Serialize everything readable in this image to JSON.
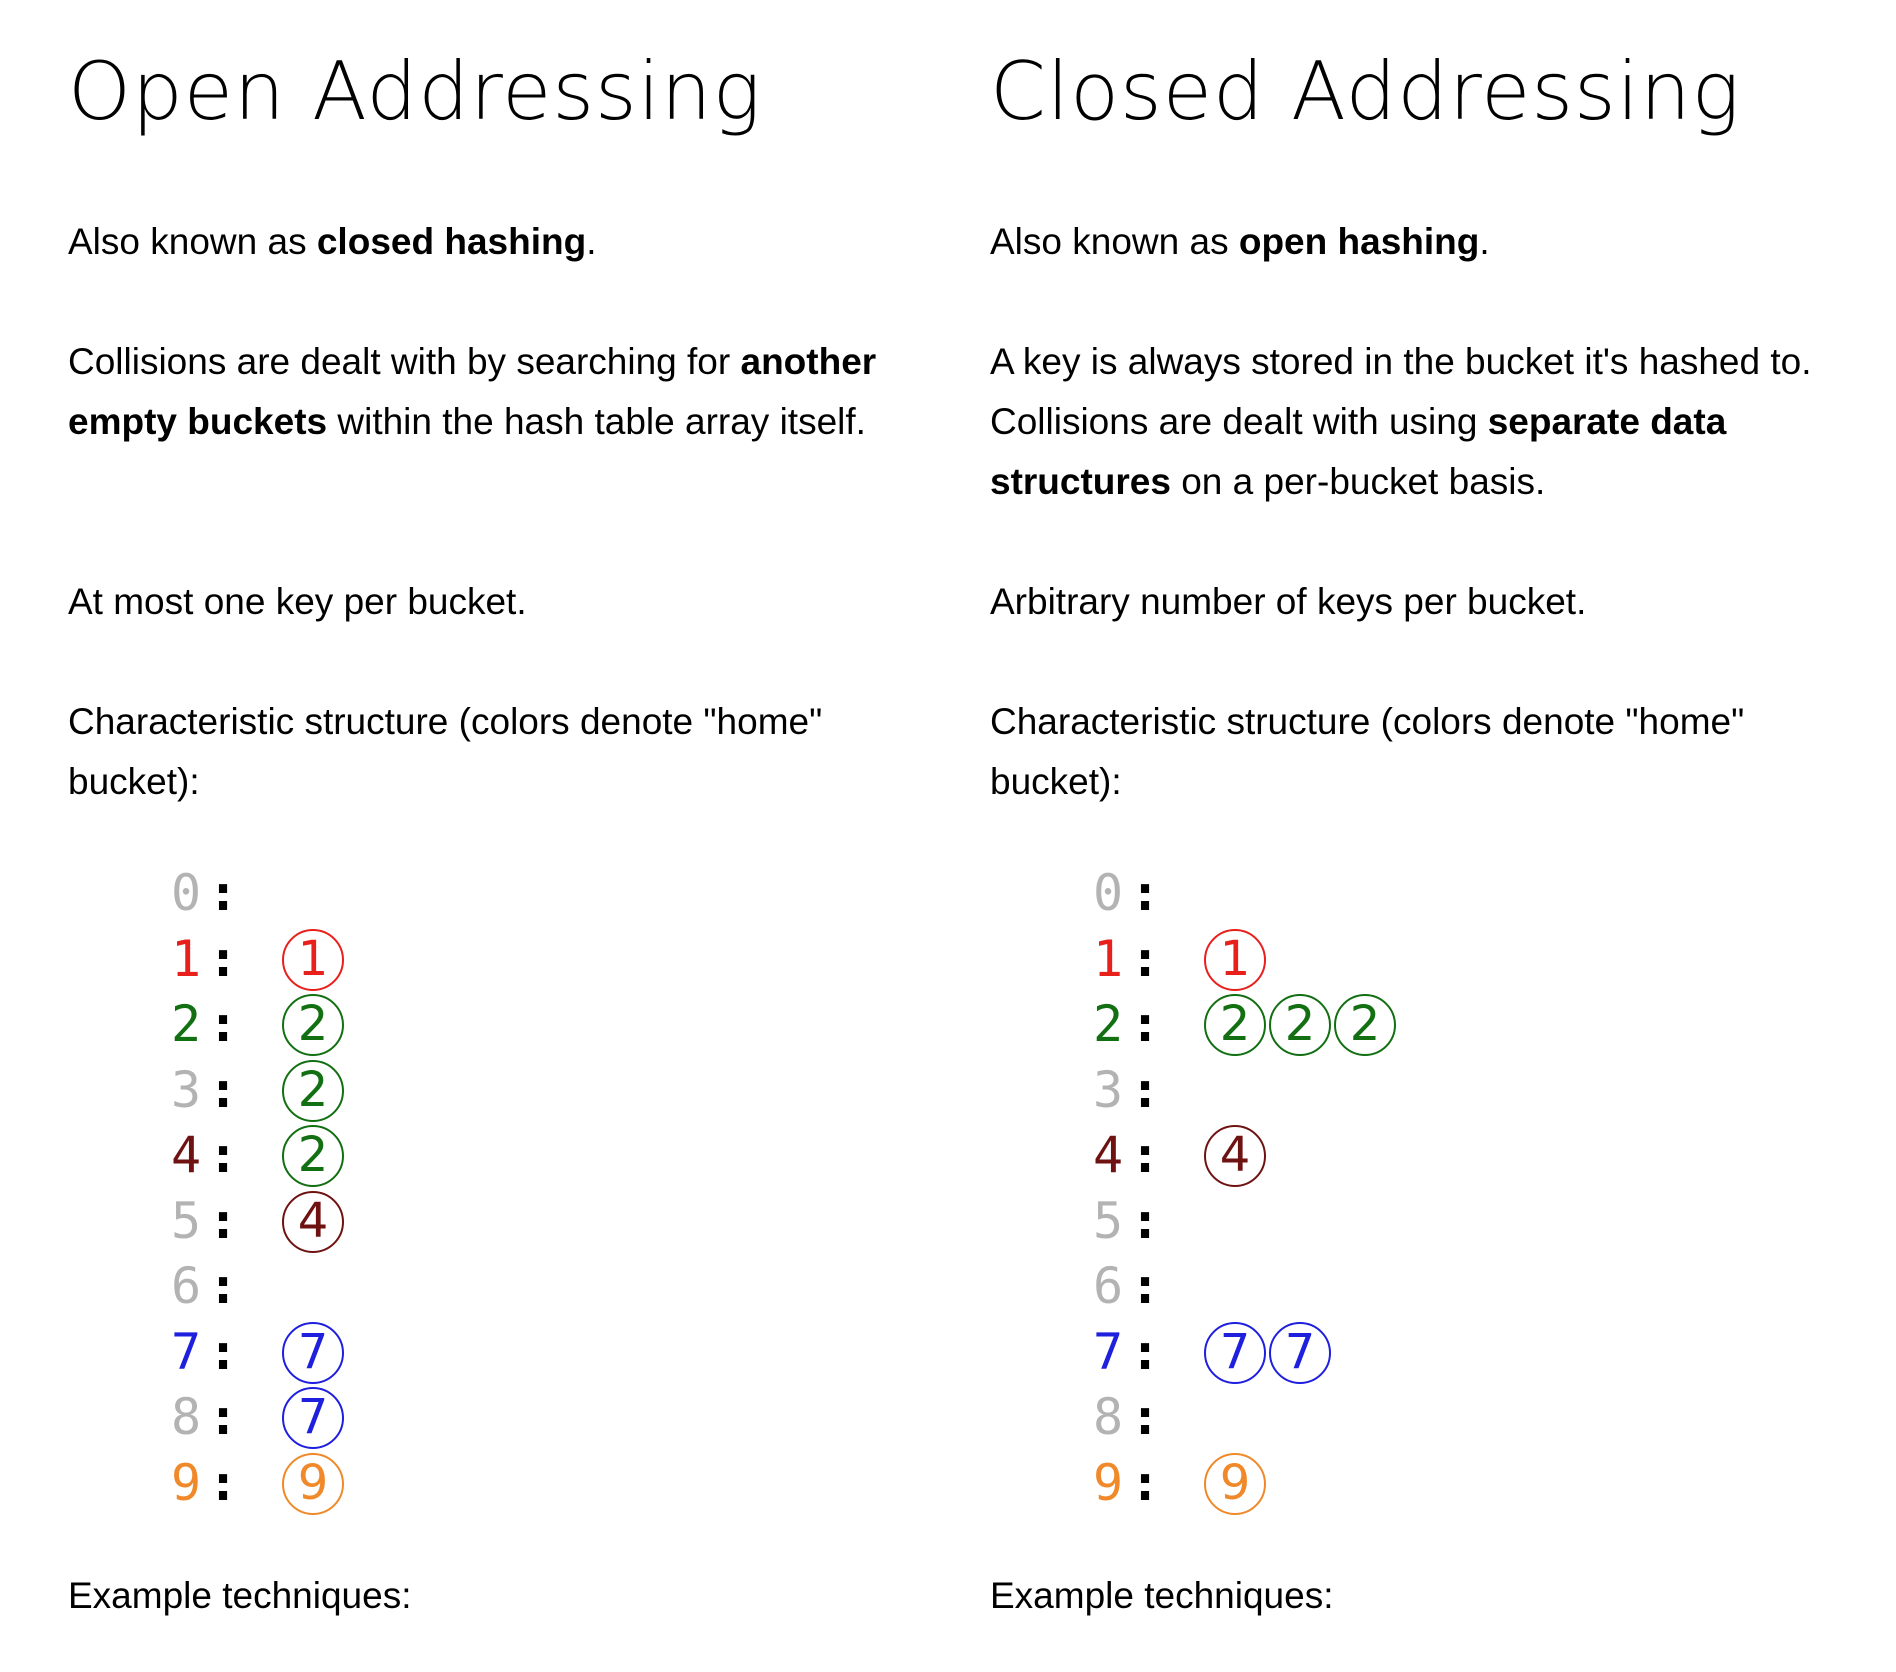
{
  "colors": {
    "gray": "#b3b3b3",
    "red": "#e8201c",
    "green": "#126f12",
    "darkred": "#6e1312",
    "blue": "#1f1fde",
    "orange": "#f0892a"
  },
  "left": {
    "title": "Open Addressing",
    "aka": {
      "prefix": "Also known as ",
      "bold": "closed hashing",
      "suffix": "."
    },
    "collisions": {
      "line1_prefix": "Collisions are dealt with by searching for ",
      "line1_bold": "another",
      "line2_bold": "empty buckets",
      "line2_suffix": " within the hash table array itself."
    },
    "capacity": "At most one key per bucket.",
    "structure": {
      "line1": "Characteristic structure (colors denote \"home\"",
      "line2": "bucket):"
    },
    "buckets": [
      {
        "index": "0",
        "color": "gray",
        "keys": []
      },
      {
        "index": "1",
        "color": "red",
        "keys": [
          {
            "value": "1",
            "color": "red"
          }
        ]
      },
      {
        "index": "2",
        "color": "green",
        "keys": [
          {
            "value": "2",
            "color": "green"
          }
        ]
      },
      {
        "index": "3",
        "color": "gray",
        "keys": [
          {
            "value": "2",
            "color": "green"
          }
        ]
      },
      {
        "index": "4",
        "color": "darkred",
        "keys": [
          {
            "value": "2",
            "color": "green"
          }
        ]
      },
      {
        "index": "5",
        "color": "gray",
        "keys": [
          {
            "value": "4",
            "color": "darkred"
          }
        ]
      },
      {
        "index": "6",
        "color": "gray",
        "keys": []
      },
      {
        "index": "7",
        "color": "blue",
        "keys": [
          {
            "value": "7",
            "color": "blue"
          }
        ]
      },
      {
        "index": "8",
        "color": "gray",
        "keys": [
          {
            "value": "7",
            "color": "blue"
          }
        ]
      },
      {
        "index": "9",
        "color": "orange",
        "keys": [
          {
            "value": "9",
            "color": "orange"
          }
        ]
      }
    ],
    "techniques": "Example techniques:"
  },
  "right": {
    "title": "Closed Addressing",
    "aka": {
      "prefix": "Also known as ",
      "bold": "open hashing",
      "suffix": "."
    },
    "stored": "A key is always stored in the bucket it's hashed to.",
    "collisions": {
      "line1_prefix": "Collisions are dealt with using ",
      "line1_bold": "separate data",
      "line2_bold": "structures",
      "line2_suffix": " on a per-bucket basis."
    },
    "capacity": "Arbitrary number of keys per bucket.",
    "structure": {
      "line1": "Characteristic structure (colors denote \"home\"",
      "line2": "bucket):"
    },
    "buckets": [
      {
        "index": "0",
        "color": "gray",
        "keys": []
      },
      {
        "index": "1",
        "color": "red",
        "keys": [
          {
            "value": "1",
            "color": "red"
          }
        ]
      },
      {
        "index": "2",
        "color": "green",
        "keys": [
          {
            "value": "2",
            "color": "green"
          },
          {
            "value": "2",
            "color": "green"
          },
          {
            "value": "2",
            "color": "green"
          }
        ]
      },
      {
        "index": "3",
        "color": "gray",
        "keys": []
      },
      {
        "index": "4",
        "color": "darkred",
        "keys": [
          {
            "value": "4",
            "color": "darkred"
          }
        ]
      },
      {
        "index": "5",
        "color": "gray",
        "keys": []
      },
      {
        "index": "6",
        "color": "gray",
        "keys": []
      },
      {
        "index": "7",
        "color": "blue",
        "keys": [
          {
            "value": "7",
            "color": "blue"
          },
          {
            "value": "7",
            "color": "blue"
          }
        ]
      },
      {
        "index": "8",
        "color": "gray",
        "keys": []
      },
      {
        "index": "9",
        "color": "orange",
        "keys": [
          {
            "value": "9",
            "color": "orange"
          }
        ]
      }
    ],
    "techniques": "Example techniques:"
  }
}
